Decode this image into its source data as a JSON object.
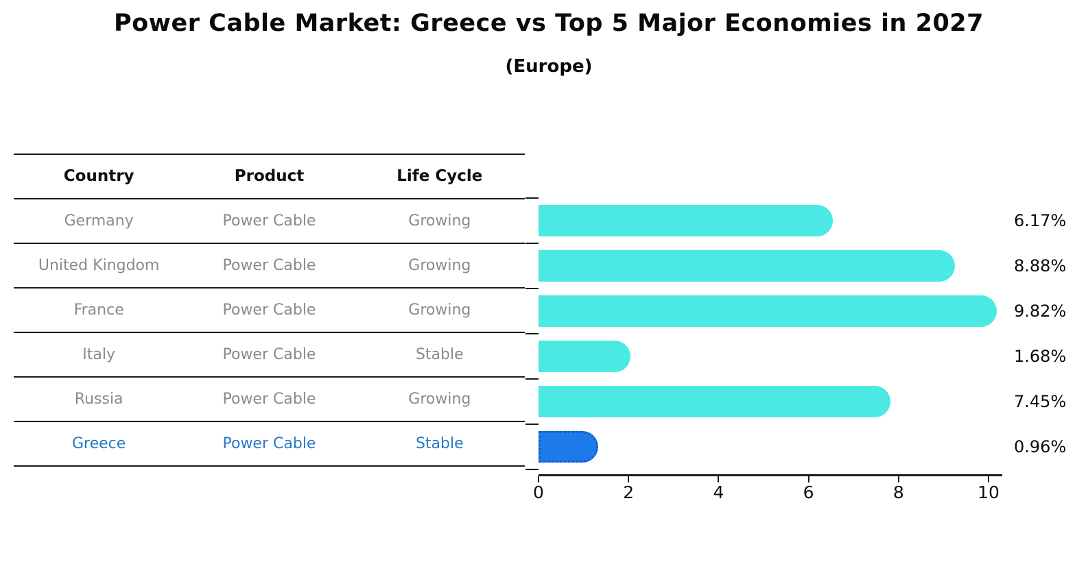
{
  "title": "Power Cable Market: Greece vs Top 5 Major Economies in 2027",
  "subtitle": "(Europe)",
  "table": {
    "headers": [
      "Country",
      "Product",
      "Life Cycle"
    ],
    "rows": [
      {
        "country": "Germany",
        "product": "Power Cable",
        "life_cycle": "Growing",
        "highlight": false
      },
      {
        "country": "United Kingdom",
        "product": "Power Cable",
        "life_cycle": "Growing",
        "highlight": false
      },
      {
        "country": "France",
        "product": "Power Cable",
        "life_cycle": "Growing",
        "highlight": false
      },
      {
        "country": "Italy",
        "product": "Power Cable",
        "life_cycle": "Stable",
        "highlight": false
      },
      {
        "country": "Russia",
        "product": "Power Cable",
        "life_cycle": "Growing",
        "highlight": false
      },
      {
        "country": "Greece",
        "product": "Power Cable",
        "life_cycle": "Stable",
        "highlight": true
      }
    ]
  },
  "chart_data": {
    "type": "bar",
    "orientation": "horizontal",
    "categories": [
      "Germany",
      "United Kingdom",
      "France",
      "Italy",
      "Russia",
      "Greece"
    ],
    "values": [
      6.17,
      8.88,
      9.82,
      1.68,
      7.45,
      0.96
    ],
    "value_labels": [
      "6.17%",
      "8.88%",
      "9.82%",
      "1.68%",
      "7.45%",
      "0.96%"
    ],
    "highlight_index": 5,
    "x_ticks": [
      "0",
      "2",
      "4",
      "6",
      "8",
      "10"
    ],
    "x_tick_values": [
      0,
      2,
      4,
      6,
      8,
      10
    ],
    "xlim": [
      0,
      10.3
    ],
    "grid": false,
    "legend": "none",
    "bar_color": "#4BE9E4",
    "highlight_bar_color": "#1E7AE8",
    "highlight_text_color": "#2878C8",
    "axis_color": "#1a1a1a",
    "label_color": "#0a0a0a",
    "table_text_color": "#8a8a8a"
  }
}
